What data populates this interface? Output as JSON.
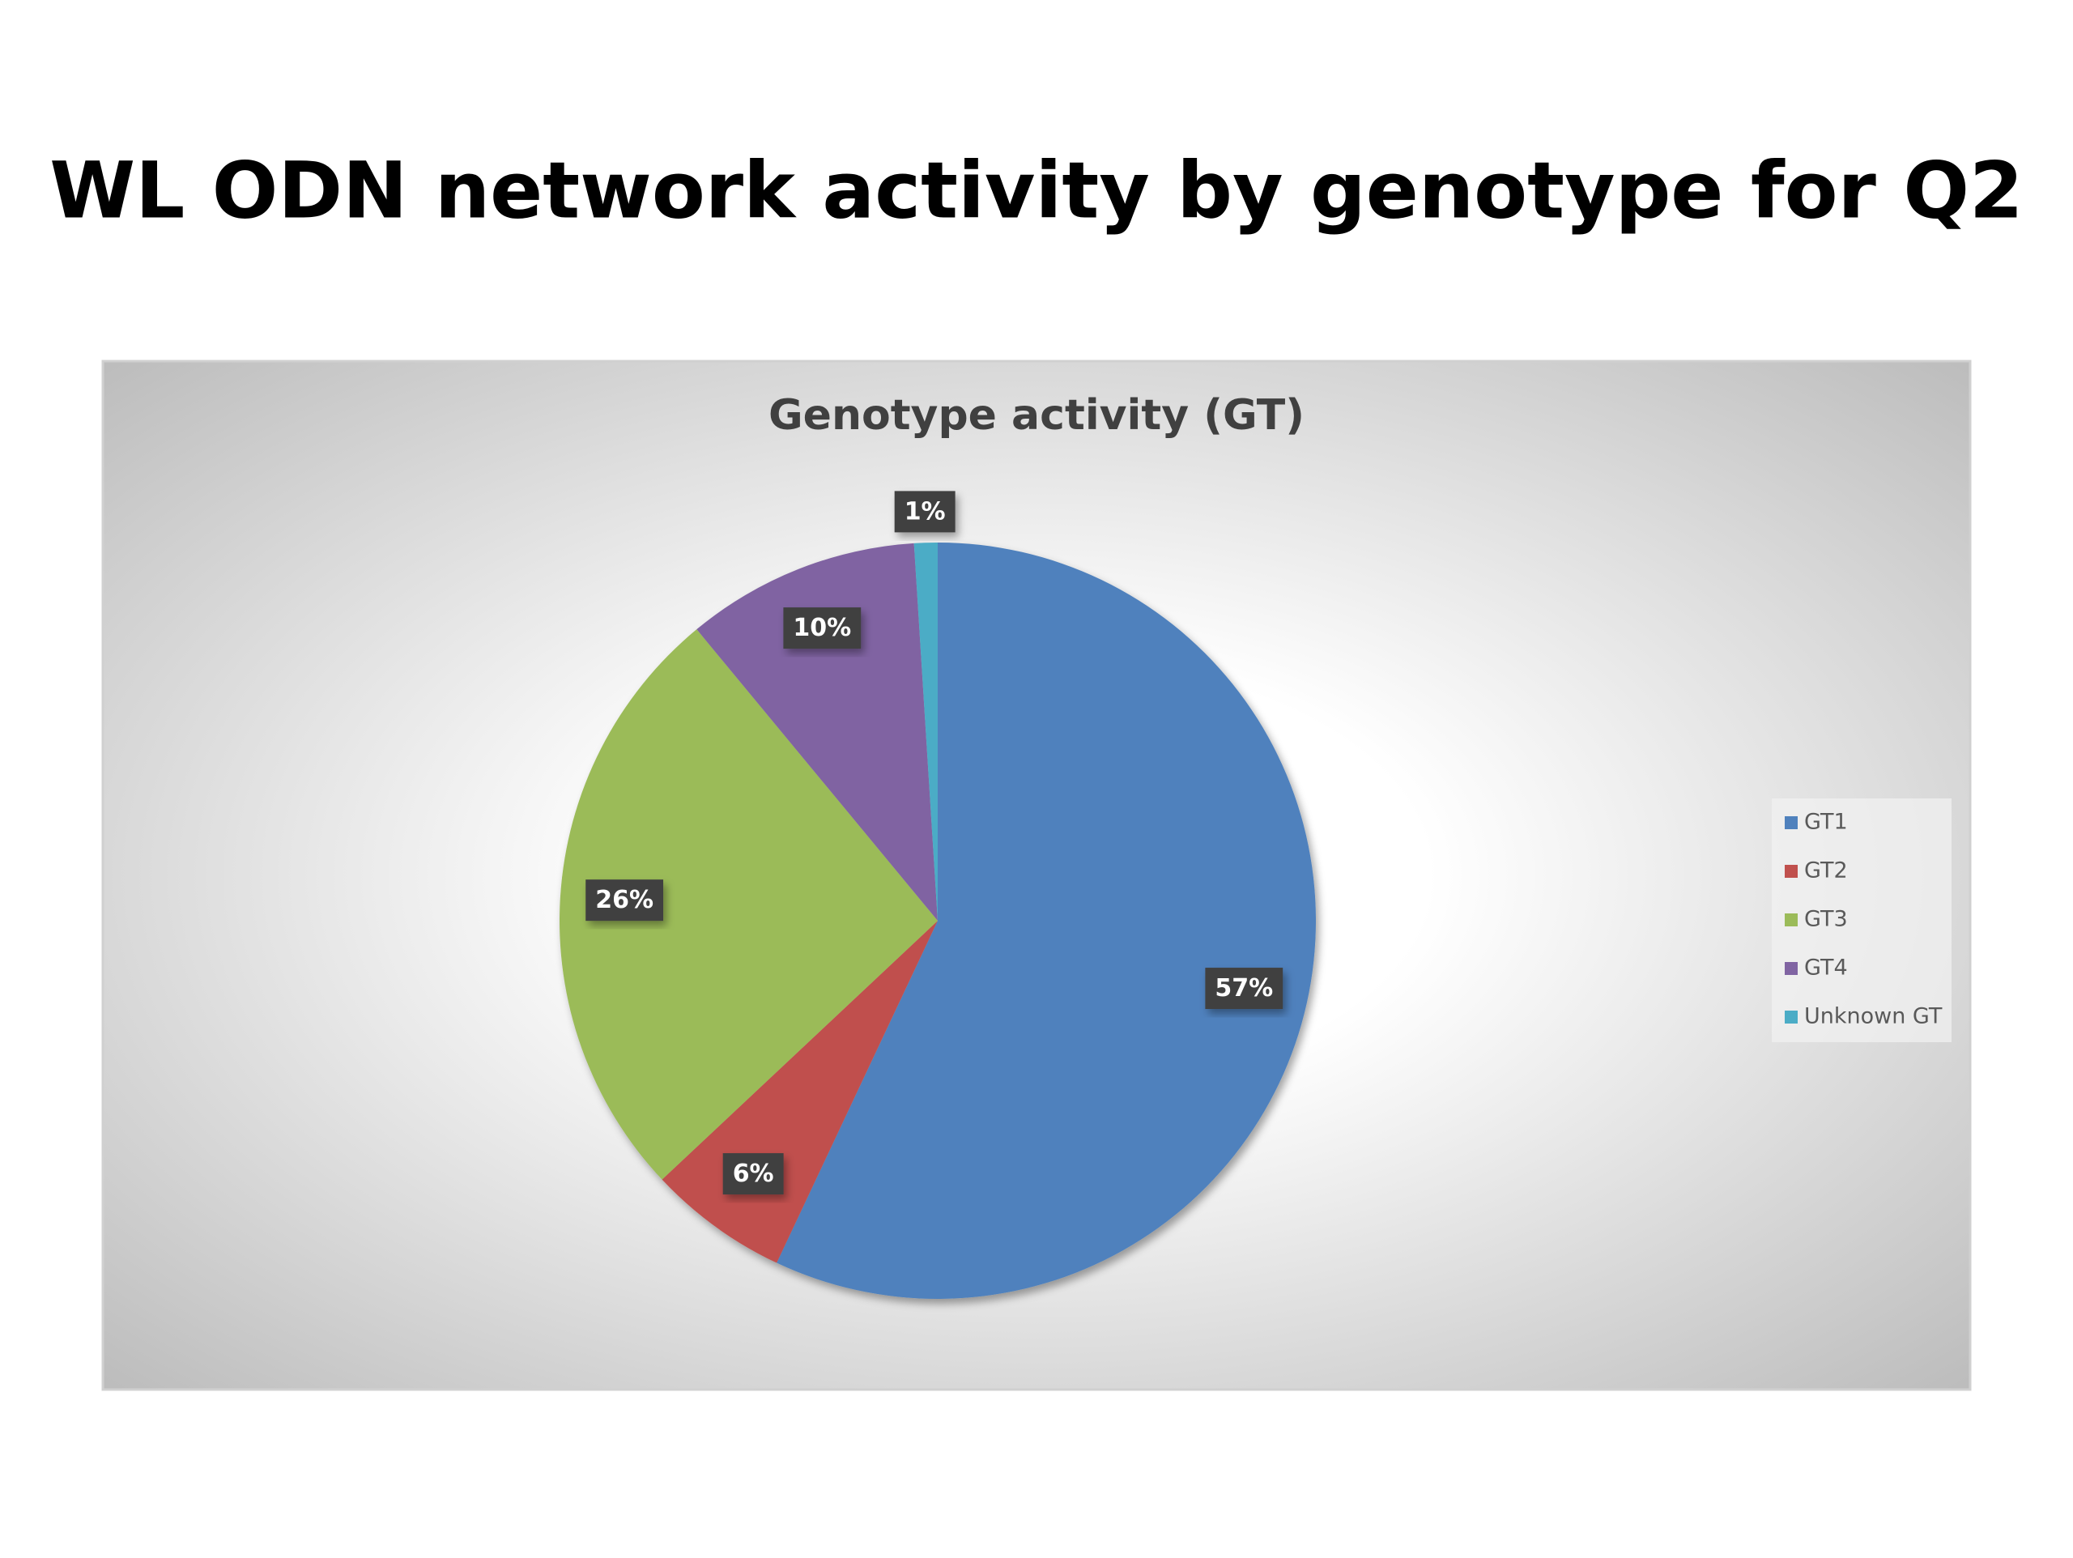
{
  "slide": {
    "title": "WL ODN network activity by genotype for Q2"
  },
  "chart_data": {
    "type": "pie",
    "title": "Genotype activity (GT)",
    "categories": [
      "GT1",
      "GT2",
      "GT3",
      "GT4",
      "Unknown GT"
    ],
    "values": [
      57,
      6,
      26,
      10,
      1
    ],
    "value_labels": [
      "57%",
      "6%",
      "26%",
      "10%",
      "1%"
    ],
    "colors": [
      "#4f81bd",
      "#c0504d",
      "#9bbb59",
      "#8064a2",
      "#4bacc6"
    ],
    "legend": "right"
  }
}
